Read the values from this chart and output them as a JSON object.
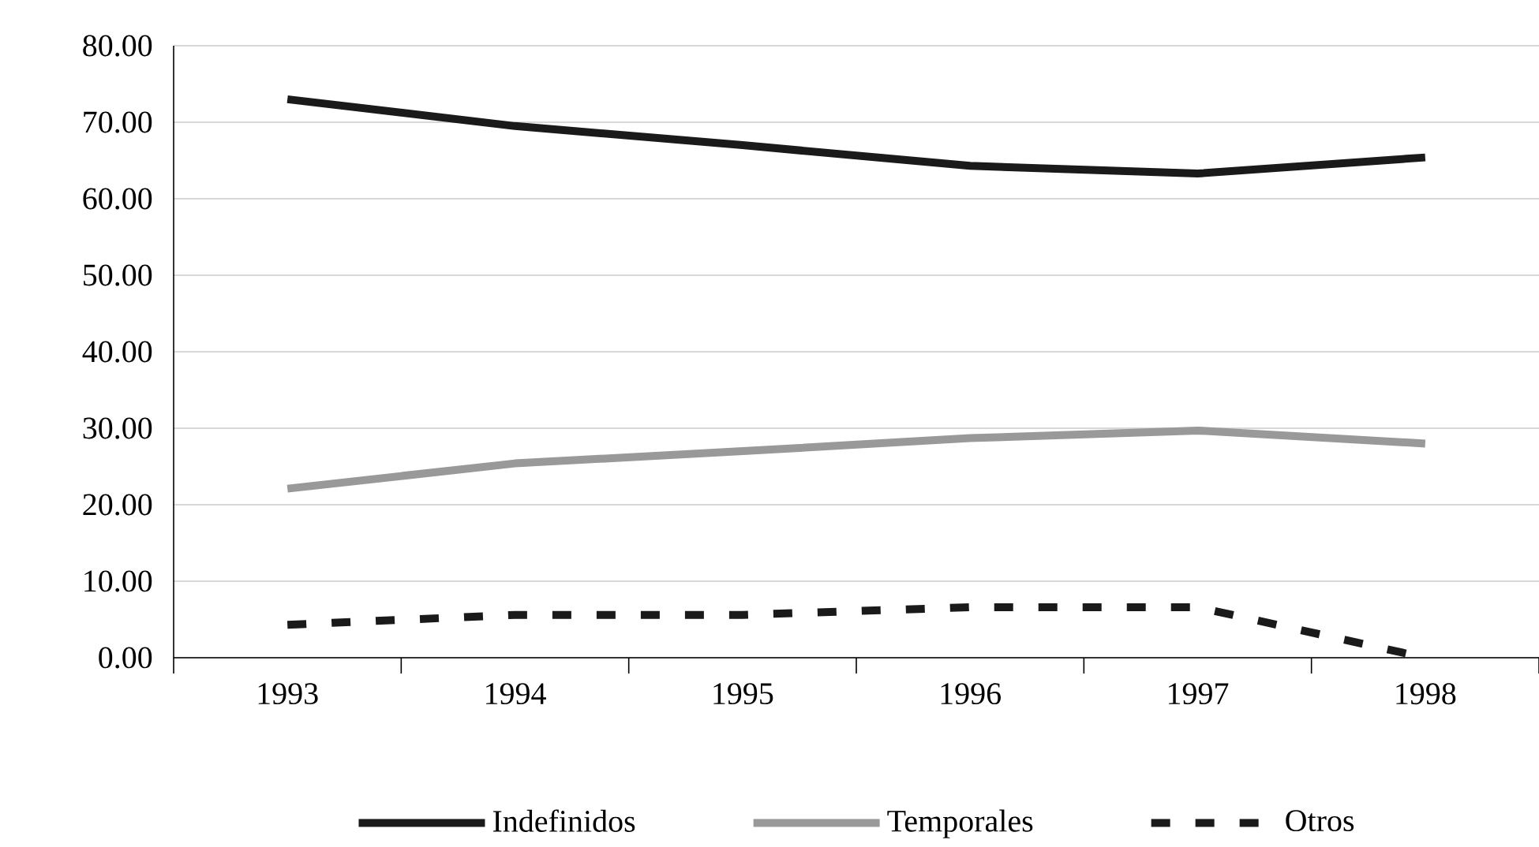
{
  "chart_data": {
    "type": "line",
    "categories": [
      "1993",
      "1994",
      "1995",
      "1996",
      "1997",
      "1998"
    ],
    "series": [
      {
        "name": "Indefinidos",
        "color": "#1a1a1a",
        "values": [
          73.0,
          69.5,
          67.0,
          64.3,
          63.3,
          65.4
        ]
      },
      {
        "name": "Temporales",
        "color": "#999999",
        "values": [
          22.1,
          25.4,
          27.0,
          28.7,
          29.7,
          28.0
        ]
      },
      {
        "name": "Otros",
        "color": "#1a1a1a",
        "line_style": "dashed",
        "values": [
          4.3,
          5.6,
          5.6,
          6.6,
          6.6,
          0.0
        ]
      }
    ],
    "ylim": [
      0,
      80
    ],
    "yticks": [
      {
        "value": 0,
        "label": "0.00"
      },
      {
        "value": 10,
        "label": "10.00"
      },
      {
        "value": 20,
        "label": "20.00"
      },
      {
        "value": 30,
        "label": "30.00"
      },
      {
        "value": 40,
        "label": "40.00"
      },
      {
        "value": 50,
        "label": "50.00"
      },
      {
        "value": 60,
        "label": "60.00"
      },
      {
        "value": 70,
        "label": "70.00"
      },
      {
        "value": 80,
        "label": "80.00"
      }
    ],
    "grid": "y",
    "legend": "bottom"
  }
}
